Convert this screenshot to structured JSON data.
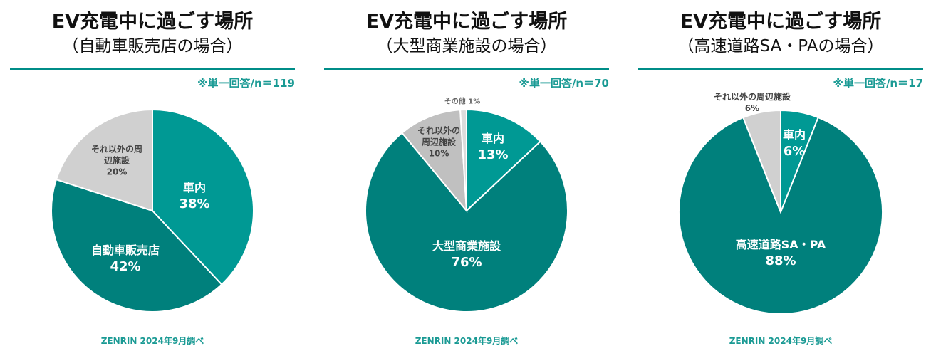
{
  "colors": {
    "accent": "#008d88",
    "in_car": "#009994",
    "main": "#00807c",
    "other": "#d0d0d0",
    "other2": "#c0c0c0",
    "misc": "#dcdcdc"
  },
  "chart_data": [
    {
      "type": "pie",
      "title": "EV充電中に過ごす場所",
      "subtitle": "（自動車販売店の場合）",
      "note": "※単一回答/n＝119",
      "source": "ZENRIN 2024年9月調べ",
      "slices": [
        {
          "label": "車内",
          "value": 38,
          "pct": "38%"
        },
        {
          "label": "自動車販売店",
          "value": 42,
          "pct": "42%"
        },
        {
          "label": "それ以外の周辺施設",
          "value": 20,
          "pct": "20%"
        }
      ]
    },
    {
      "type": "pie",
      "title": "EV充電中に過ごす場所",
      "subtitle": "（大型商業施設の場合）",
      "note": "※単一回答/n＝70",
      "source": "ZENRIN 2024年9月調べ",
      "slices": [
        {
          "label": "車内",
          "value": 13,
          "pct": "13%"
        },
        {
          "label": "大型商業施設",
          "value": 76,
          "pct": "76%"
        },
        {
          "label": "それ以外の周辺施設",
          "value": 10,
          "pct": "10%"
        },
        {
          "label": "その他",
          "value": 1,
          "pct": "1%"
        }
      ]
    },
    {
      "type": "pie",
      "title": "EV充電中に過ごす場所",
      "subtitle": "（高速道路SA・PAの場合）",
      "note": "※単一回答/n＝17",
      "source": "ZENRIN 2024年9月調べ",
      "slices": [
        {
          "label": "車内",
          "value": 6,
          "pct": "6%"
        },
        {
          "label": "高速道路SA・PA",
          "value": 88,
          "pct": "88%"
        },
        {
          "label": "それ以外の周辺施設",
          "value": 6,
          "pct": "6%"
        }
      ]
    }
  ]
}
